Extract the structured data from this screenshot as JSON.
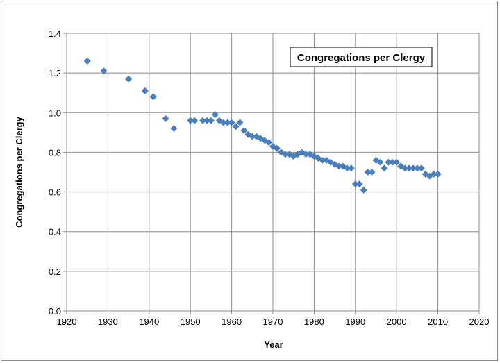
{
  "chart_data": {
    "type": "scatter",
    "title": "Congregations per Clergy",
    "xlabel": "Year",
    "ylabel": "Congregations per Clergy",
    "xlim": [
      1920,
      2020
    ],
    "ylim": [
      0.0,
      1.4
    ],
    "x_ticks": [
      "1920",
      "1930",
      "1940",
      "1950",
      "1960",
      "1970",
      "1980",
      "1990",
      "2000",
      "2010",
      "2020"
    ],
    "y_ticks": [
      "0.0",
      "0.2",
      "0.4",
      "0.6",
      "0.8",
      "1.0",
      "1.2",
      "1.4"
    ],
    "grid": true,
    "marker_color": "#4a7ebb",
    "points": [
      [
        1925,
        1.26
      ],
      [
        1929,
        1.21
      ],
      [
        1935,
        1.17
      ],
      [
        1939,
        1.11
      ],
      [
        1941,
        1.08
      ],
      [
        1944,
        0.97
      ],
      [
        1946,
        0.92
      ],
      [
        1950,
        0.96
      ],
      [
        1951,
        0.96
      ],
      [
        1953,
        0.96
      ],
      [
        1954,
        0.96
      ],
      [
        1955,
        0.96
      ],
      [
        1956,
        0.99
      ],
      [
        1957,
        0.96
      ],
      [
        1958,
        0.95
      ],
      [
        1959,
        0.95
      ],
      [
        1960,
        0.95
      ],
      [
        1961,
        0.93
      ],
      [
        1962,
        0.95
      ],
      [
        1963,
        0.91
      ],
      [
        1964,
        0.89
      ],
      [
        1965,
        0.88
      ],
      [
        1966,
        0.88
      ],
      [
        1967,
        0.87
      ],
      [
        1968,
        0.86
      ],
      [
        1969,
        0.85
      ],
      [
        1970,
        0.83
      ],
      [
        1971,
        0.82
      ],
      [
        1972,
        0.8
      ],
      [
        1973,
        0.79
      ],
      [
        1974,
        0.79
      ],
      [
        1975,
        0.78
      ],
      [
        1976,
        0.79
      ],
      [
        1977,
        0.8
      ],
      [
        1978,
        0.79
      ],
      [
        1979,
        0.79
      ],
      [
        1980,
        0.78
      ],
      [
        1981,
        0.77
      ],
      [
        1982,
        0.76
      ],
      [
        1983,
        0.76
      ],
      [
        1984,
        0.75
      ],
      [
        1985,
        0.74
      ],
      [
        1986,
        0.73
      ],
      [
        1987,
        0.73
      ],
      [
        1988,
        0.72
      ],
      [
        1989,
        0.72
      ],
      [
        1990,
        0.64
      ],
      [
        1991,
        0.64
      ],
      [
        1992,
        0.61
      ],
      [
        1993,
        0.7
      ],
      [
        1994,
        0.7
      ],
      [
        1995,
        0.76
      ],
      [
        1996,
        0.75
      ],
      [
        1997,
        0.72
      ],
      [
        1998,
        0.75
      ],
      [
        1999,
        0.75
      ],
      [
        2000,
        0.75
      ],
      [
        2001,
        0.73
      ],
      [
        2002,
        0.72
      ],
      [
        2003,
        0.72
      ],
      [
        2004,
        0.72
      ],
      [
        2005,
        0.72
      ],
      [
        2006,
        0.72
      ],
      [
        2007,
        0.69
      ],
      [
        2008,
        0.68
      ],
      [
        2009,
        0.69
      ],
      [
        2010,
        0.69
      ]
    ]
  }
}
